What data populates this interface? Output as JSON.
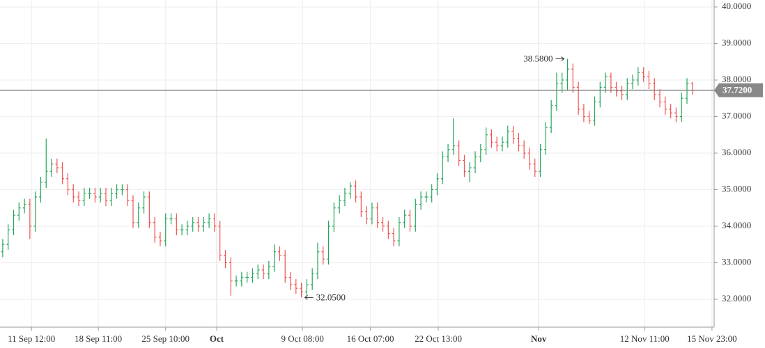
{
  "chart_data": {
    "type": "ohlc",
    "series": [
      {
        "up_color": "#26a65b",
        "down_color": "#ef5350",
        "open": [
          33.3,
          33.5,
          33.9,
          34.3,
          34.5,
          34.6,
          34.0,
          34.8,
          35.2,
          35.5,
          35.7,
          35.6,
          35.3,
          35.0,
          34.8,
          34.7,
          34.9,
          34.9,
          34.8,
          34.9,
          34.7,
          34.9,
          35.0,
          35.0,
          34.7,
          34.1,
          34.5,
          34.8,
          34.1,
          33.7,
          33.6,
          34.2,
          34.2,
          33.9,
          33.9,
          34.0,
          34.1,
          34.0,
          34.1,
          34.2,
          34.0,
          33.2,
          33.0,
          32.5,
          32.5,
          32.6,
          32.6,
          32.7,
          32.8,
          32.7,
          32.9,
          33.3,
          33.2,
          32.6,
          32.4,
          32.3,
          32.2,
          32.4,
          32.7,
          33.3,
          33.1,
          34.0,
          34.5,
          34.7,
          34.9,
          35.1,
          34.8,
          34.4,
          34.2,
          34.5,
          34.1,
          34.0,
          33.8,
          33.6,
          34.1,
          34.3,
          34.0,
          34.6,
          34.8,
          34.8,
          35.0,
          35.3,
          35.9,
          36.1,
          36.2,
          35.8,
          35.5,
          35.6,
          35.9,
          36.1,
          36.5,
          36.3,
          36.2,
          36.3,
          36.6,
          36.4,
          36.2,
          36.0,
          35.7,
          35.5,
          36.1,
          36.7,
          37.3,
          37.9,
          38.0,
          38.3,
          37.8,
          37.2,
          37.0,
          36.9,
          37.4,
          37.8,
          38.1,
          37.8,
          37.7,
          37.6,
          37.9,
          38.0,
          38.2,
          38.1,
          37.9,
          37.6,
          37.4,
          37.2,
          37.1,
          37.0,
          37.5,
          37.9
        ],
        "high": [
          33.65,
          34.05,
          34.45,
          34.65,
          34.75,
          34.75,
          34.95,
          35.35,
          36.4,
          35.85,
          35.85,
          35.75,
          35.45,
          35.15,
          34.95,
          35.05,
          35.05,
          35.05,
          35.05,
          35.05,
          35.05,
          35.15,
          35.15,
          35.15,
          34.85,
          34.65,
          34.95,
          34.95,
          34.25,
          33.85,
          34.35,
          34.35,
          34.35,
          34.05,
          34.15,
          34.25,
          34.25,
          34.25,
          34.35,
          34.35,
          34.15,
          33.35,
          33.15,
          32.65,
          32.75,
          32.75,
          32.85,
          32.95,
          32.95,
          33.05,
          33.5,
          33.45,
          33.35,
          32.75,
          32.55,
          32.45,
          32.55,
          32.85,
          33.55,
          33.45,
          34.15,
          34.65,
          34.85,
          35.05,
          35.2,
          35.25,
          34.95,
          34.55,
          34.65,
          34.65,
          34.25,
          34.15,
          33.95,
          34.25,
          34.45,
          34.45,
          34.75,
          34.95,
          34.95,
          35.15,
          35.45,
          36.05,
          36.25,
          36.95,
          36.35,
          35.95,
          35.75,
          36.05,
          36.25,
          36.7,
          36.65,
          36.45,
          36.45,
          36.75,
          36.75,
          36.55,
          36.35,
          36.15,
          35.85,
          36.25,
          36.85,
          37.45,
          38.2,
          38.2,
          38.58,
          38.45,
          37.95,
          37.35,
          37.15,
          37.55,
          37.95,
          38.2,
          38.2,
          37.95,
          37.85,
          38.05,
          38.15,
          38.35,
          38.35,
          38.25,
          38.05,
          37.75,
          37.55,
          37.35,
          37.25,
          37.65,
          38.05,
          37.95
        ],
        "low": [
          33.15,
          33.35,
          33.75,
          34.15,
          34.35,
          33.65,
          33.85,
          34.65,
          35.05,
          35.35,
          35.45,
          35.15,
          34.85,
          34.65,
          34.55,
          34.55,
          34.75,
          34.65,
          34.65,
          34.55,
          34.55,
          34.75,
          34.85,
          34.55,
          33.95,
          33.95,
          34.35,
          33.95,
          33.55,
          33.45,
          33.45,
          34.05,
          33.75,
          33.75,
          33.75,
          33.85,
          33.85,
          33.85,
          33.95,
          33.85,
          33.05,
          32.85,
          32.1,
          32.35,
          32.35,
          32.45,
          32.45,
          32.55,
          32.55,
          32.55,
          32.75,
          33.05,
          32.45,
          32.25,
          32.15,
          32.05,
          32.1,
          32.25,
          32.55,
          32.95,
          32.95,
          33.85,
          34.35,
          34.55,
          34.75,
          34.65,
          34.25,
          34.05,
          34.05,
          33.95,
          33.85,
          33.65,
          33.45,
          33.45,
          33.95,
          33.85,
          33.85,
          34.45,
          34.65,
          34.65,
          34.85,
          35.15,
          35.75,
          35.95,
          35.65,
          35.35,
          35.2,
          35.45,
          35.75,
          35.95,
          36.15,
          36.05,
          36.05,
          36.15,
          36.25,
          36.05,
          35.85,
          35.55,
          35.35,
          35.35,
          35.95,
          36.55,
          37.15,
          37.65,
          37.7,
          37.65,
          37.05,
          36.85,
          36.8,
          36.75,
          37.25,
          37.65,
          37.65,
          37.55,
          37.45,
          37.45,
          37.75,
          37.85,
          37.95,
          37.75,
          37.45,
          37.25,
          37.05,
          36.95,
          36.85,
          36.85,
          37.35,
          37.6
        ],
        "close": [
          33.5,
          33.9,
          34.3,
          34.5,
          34.6,
          34.0,
          34.8,
          35.2,
          35.5,
          35.7,
          35.6,
          35.3,
          35.0,
          34.8,
          34.7,
          34.9,
          34.9,
          34.8,
          34.9,
          34.7,
          34.9,
          35.0,
          35.0,
          34.7,
          34.1,
          34.5,
          34.8,
          34.1,
          33.7,
          33.6,
          34.2,
          34.2,
          33.9,
          33.9,
          34.0,
          34.1,
          34.0,
          34.1,
          34.2,
          34.0,
          33.2,
          33.0,
          32.5,
          32.5,
          32.6,
          32.6,
          32.7,
          32.8,
          32.7,
          32.9,
          33.3,
          33.2,
          32.6,
          32.4,
          32.3,
          32.2,
          32.4,
          32.7,
          33.3,
          33.1,
          34.0,
          34.5,
          34.7,
          34.9,
          35.1,
          34.8,
          34.4,
          34.2,
          34.5,
          34.1,
          34.0,
          33.8,
          33.6,
          34.1,
          34.3,
          34.0,
          34.6,
          34.8,
          34.8,
          35.0,
          35.3,
          35.9,
          36.1,
          36.2,
          35.8,
          35.5,
          35.6,
          35.9,
          36.1,
          36.5,
          36.3,
          36.2,
          36.3,
          36.6,
          36.4,
          36.2,
          36.0,
          35.7,
          35.5,
          36.1,
          36.7,
          37.3,
          37.9,
          38.0,
          38.3,
          37.8,
          37.2,
          37.0,
          36.9,
          37.4,
          37.8,
          38.1,
          37.8,
          37.7,
          37.6,
          37.9,
          38.0,
          38.2,
          38.1,
          37.9,
          37.6,
          37.4,
          37.2,
          37.1,
          37.0,
          37.5,
          37.9,
          37.72
        ]
      }
    ],
    "high_label": {
      "value": 38.58,
      "label": "38.5800"
    },
    "low_label": {
      "value": 32.05,
      "label": "32.0500"
    },
    "last_price": {
      "value": 37.72,
      "label": "37.7200",
      "color": "#888888"
    },
    "xlim": [
      -0.5,
      131
    ],
    "xticks": [
      {
        "value": 5.3,
        "label": "11 Sep 12:00"
      },
      {
        "value": 17.6,
        "label": "18 Sep 11:00"
      },
      {
        "value": 30,
        "label": "25 Sep 10:00"
      },
      {
        "value": 39.4,
        "label": "Oct",
        "major": true
      },
      {
        "value": 55.2,
        "label": "9 Oct 08:00"
      },
      {
        "value": 67.7,
        "label": "16 Oct 07:00"
      },
      {
        "value": 80.2,
        "label": "22 Oct 13:00"
      },
      {
        "value": 98.7,
        "label": "Nov",
        "major": true
      },
      {
        "value": 118.2,
        "label": "12 Nov 11:00"
      },
      {
        "value": 130.6,
        "label": "15 Nov 23:00"
      }
    ],
    "ylim": [
      31.238,
      40.19
    ],
    "yticks": [
      {
        "value": 32,
        "label": "32.0000"
      },
      {
        "value": 33,
        "label": "33.0000"
      },
      {
        "value": 34,
        "label": "34.0000"
      },
      {
        "value": 35,
        "label": "35.0000"
      },
      {
        "value": 36,
        "label": "36.0000"
      },
      {
        "value": 37,
        "label": "37.0000"
      },
      {
        "value": 38,
        "label": "38.0000"
      },
      {
        "value": 39,
        "label": "39.0000"
      },
      {
        "value": 40,
        "label": "40.0000"
      }
    ],
    "grid": true
  }
}
